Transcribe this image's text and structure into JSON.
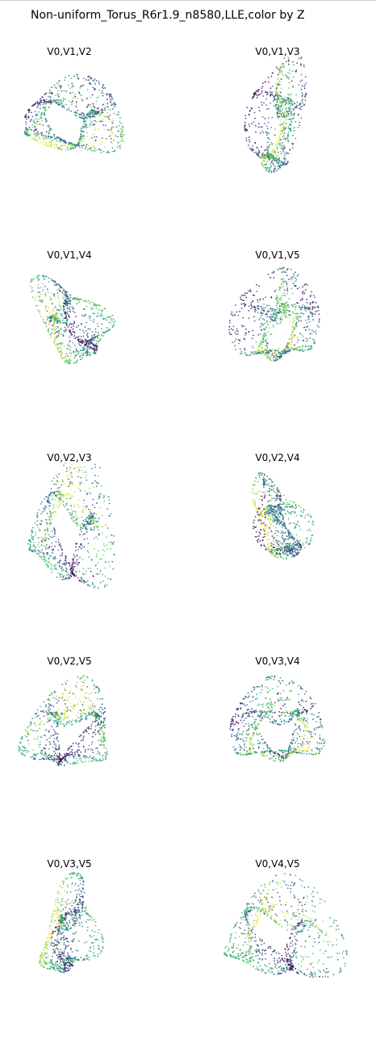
{
  "figure": {
    "title": "Non-uniform_Torus_R6r1.9_n8580,LLE,color by Z"
  },
  "colormap": {
    "name": "viridis",
    "stops": [
      "#440154",
      "#3b528b",
      "#21918c",
      "#5ec962",
      "#fde725"
    ]
  },
  "chart_data": [
    {
      "type": "scatter",
      "title": "V0,V1,V2",
      "color_by": "Z",
      "axes_visible": false,
      "points": 8580
    },
    {
      "type": "scatter",
      "title": "V0,V1,V3",
      "color_by": "Z",
      "axes_visible": false,
      "points": 8580
    },
    {
      "type": "scatter",
      "title": "V0,V1,V4",
      "color_by": "Z",
      "axes_visible": false,
      "points": 8580
    },
    {
      "type": "scatter",
      "title": "V0,V1,V5",
      "color_by": "Z",
      "axes_visible": false,
      "points": 8580
    },
    {
      "type": "scatter",
      "title": "V0,V2,V3",
      "color_by": "Z",
      "axes_visible": false,
      "points": 8580
    },
    {
      "type": "scatter",
      "title": "V0,V2,V4",
      "color_by": "Z",
      "axes_visible": false,
      "points": 8580
    },
    {
      "type": "scatter",
      "title": "V0,V2,V5",
      "color_by": "Z",
      "axes_visible": false,
      "points": 8580
    },
    {
      "type": "scatter",
      "title": "V0,V3,V4",
      "color_by": "Z",
      "axes_visible": false,
      "points": 8580
    },
    {
      "type": "scatter",
      "title": "V0,V3,V5",
      "color_by": "Z",
      "axes_visible": false,
      "points": 8580
    },
    {
      "type": "scatter",
      "title": "V0,V4,V5",
      "color_by": "Z",
      "axes_visible": false,
      "points": 8580
    }
  ]
}
